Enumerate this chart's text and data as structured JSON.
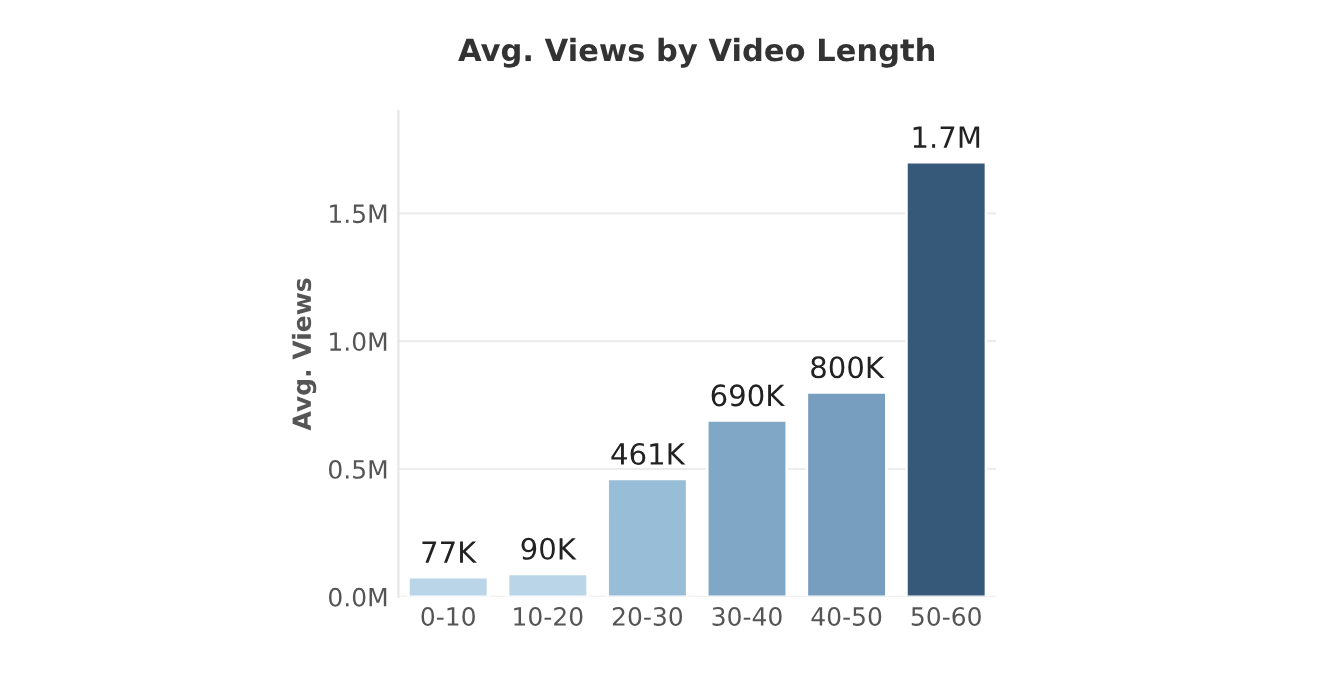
{
  "chart_data": {
    "type": "bar",
    "title": "Avg. Views by Video Length",
    "ylabel": "Avg. Views",
    "categories": [
      "0-10",
      "10-20",
      "20-30",
      "30-40",
      "40-50",
      "50-60"
    ],
    "values": [
      77000,
      90000,
      461000,
      690000,
      800000,
      1700000
    ],
    "value_labels": [
      "77K",
      "90K",
      "461K",
      "690K",
      "800K",
      "1.7M"
    ],
    "colors": [
      "#b3d7ee",
      "#b3d7ee",
      "#8ebfe0",
      "#74a9d1",
      "#6b9fca",
      "#2b5884"
    ],
    "ylim": [
      0,
      1900000
    ],
    "yticks": [
      {
        "value": 0,
        "label": "0.0M"
      },
      {
        "value": 500000,
        "label": "0.5M"
      },
      {
        "value": 1000000,
        "label": "1.0M"
      },
      {
        "value": 1500000,
        "label": "1.5M"
      }
    ],
    "grid": "y",
    "legend": false
  }
}
